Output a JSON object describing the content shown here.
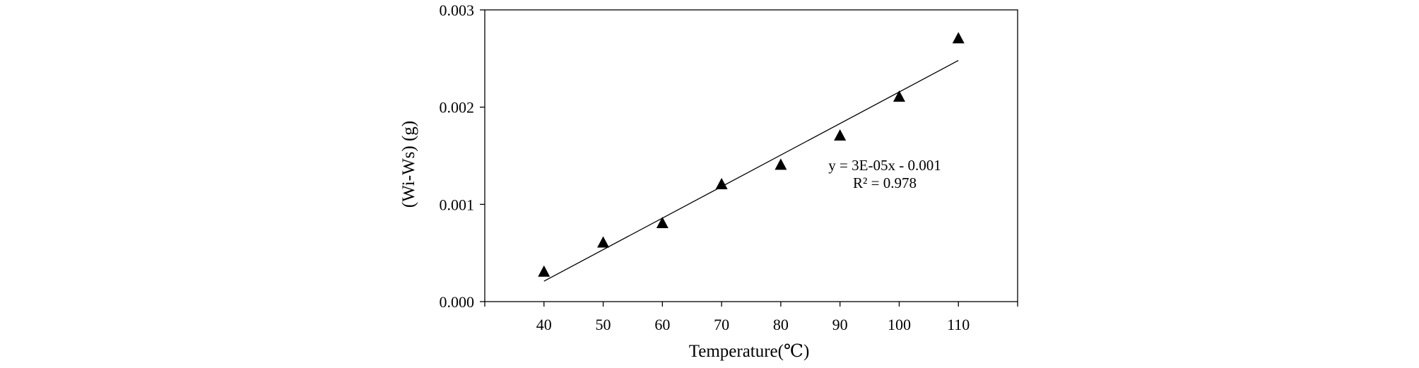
{
  "chart_data": {
    "type": "scatter",
    "title": "",
    "xlabel": "Temperature(℃)",
    "ylabel": "(Wi-Ws) (g)",
    "xlim": [
      30,
      120
    ],
    "ylim": [
      0,
      0.003
    ],
    "x_ticks": [
      40,
      50,
      60,
      70,
      80,
      90,
      100,
      110
    ],
    "x_tick_labels": [
      "40",
      "50",
      "60",
      "70",
      "80",
      "90",
      "100",
      "110"
    ],
    "y_ticks": [
      0,
      0.001,
      0.002,
      0.003
    ],
    "y_tick_labels": [
      "0.000",
      "0.001",
      "0.002",
      "0.003"
    ],
    "grid": false,
    "legend": false,
    "marker": "triangle",
    "marker_color": "#000000",
    "series": [
      {
        "x": [
          40,
          50,
          60,
          70,
          80,
          90,
          100,
          110
        ],
        "y": [
          0.0003,
          0.0006,
          0.0008,
          0.0012,
          0.0014,
          0.0017,
          0.0021,
          0.0027
        ]
      }
    ],
    "trendline": {
      "x": [
        40,
        110
      ],
      "y": [
        0.00021,
        0.00248
      ],
      "color": "#000000"
    },
    "annotations": {
      "equation": "y = 3E-05x - 0.001",
      "r_squared": "R² = 0.978"
    }
  }
}
